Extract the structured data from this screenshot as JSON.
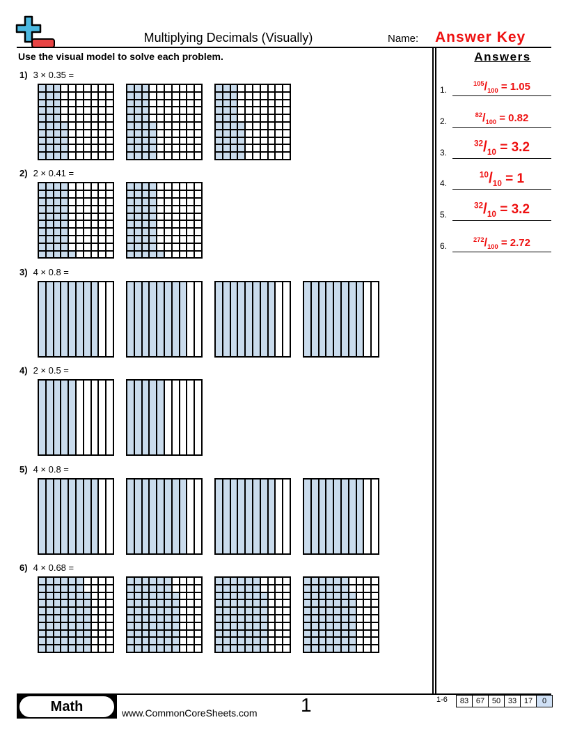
{
  "header": {
    "title": "Multiplying Decimals (Visually)",
    "name_label": "Name:",
    "name_value": "Answer Key",
    "logo_icon": "plus-minus-logo-icon"
  },
  "instructions": "Use the visual model to solve each problem.",
  "colors": {
    "shade": "#c9dbec",
    "answer": "#ee1111",
    "logo_blue": "#4bb8e0",
    "logo_red": "#e84444"
  },
  "problems": [
    {
      "number": "1)",
      "expression": "3 × 0.35 =",
      "grids": 3,
      "grid_type": "hundredths",
      "shaded": 35
    },
    {
      "number": "2)",
      "expression": "2 × 0.41 =",
      "grids": 2,
      "grid_type": "hundredths",
      "shaded": 41
    },
    {
      "number": "3)",
      "expression": "4 × 0.8 =",
      "grids": 4,
      "grid_type": "tenths",
      "shaded": 8
    },
    {
      "number": "4)",
      "expression": "2 × 0.5 =",
      "grids": 2,
      "grid_type": "tenths",
      "shaded": 5
    },
    {
      "number": "5)",
      "expression": "4 × 0.8 =",
      "grids": 4,
      "grid_type": "tenths",
      "shaded": 8
    },
    {
      "number": "6)",
      "expression": "4 × 0.68 =",
      "grids": 4,
      "grid_type": "hundredths",
      "shaded": 68
    }
  ],
  "answers": {
    "heading": "Answers",
    "items": [
      {
        "number": "1.",
        "numerator": "105",
        "denominator": "100",
        "result": "= 1.05"
      },
      {
        "number": "2.",
        "numerator": "82",
        "denominator": "100",
        "result": "= 0.82"
      },
      {
        "number": "3.",
        "numerator": "32",
        "denominator": "10",
        "result": "= 3.2"
      },
      {
        "number": "4.",
        "numerator": "10",
        "denominator": "10",
        "result": "= 1"
      },
      {
        "number": "5.",
        "numerator": "32",
        "denominator": "10",
        "result": "= 3.2"
      },
      {
        "number": "6.",
        "numerator": "272",
        "denominator": "100",
        "result": "= 2.72"
      }
    ]
  },
  "footer": {
    "subject": "Math",
    "url": "www.CommonCoreSheets.com",
    "page": "1",
    "score_range": "1-6",
    "scores": [
      "83",
      "67",
      "50",
      "33",
      "17",
      "0"
    ]
  }
}
